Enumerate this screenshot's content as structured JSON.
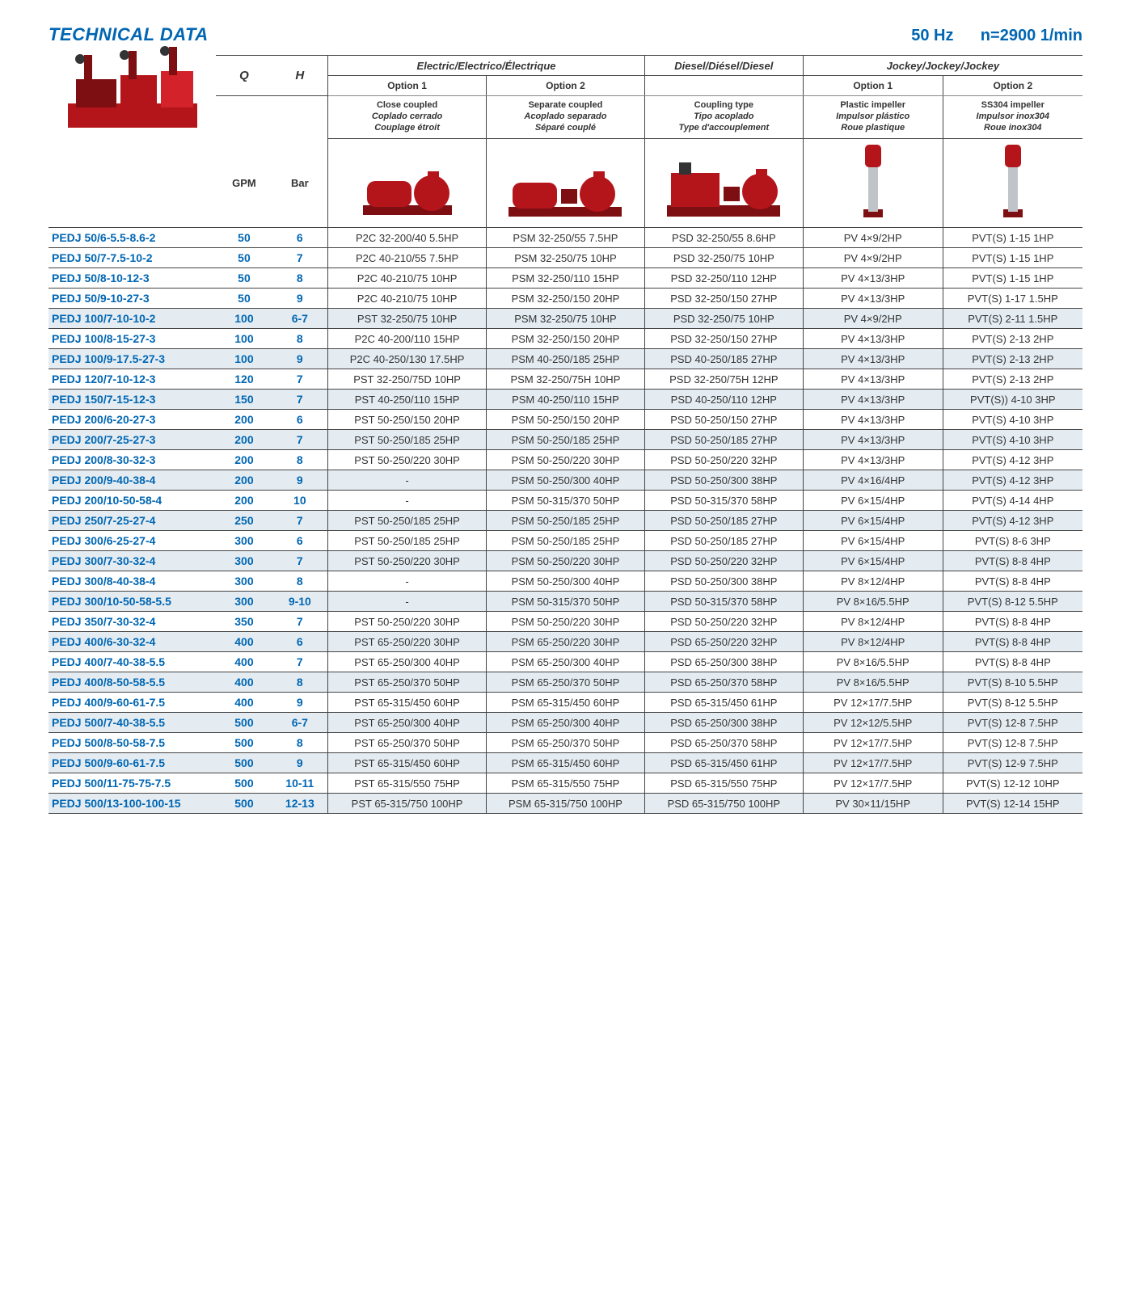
{
  "header": {
    "title_left": "TECHNICAL DATA",
    "title_right": "50 Hz      n=2900 1/min"
  },
  "columns": {
    "q_label": "Q",
    "h_label": "H",
    "q_unit": "GPM",
    "h_unit": "Bar",
    "electric_group": "Electric/Electrico/Électrique",
    "diesel_group": "Diesel/Diésel/Diesel",
    "jockey_group": "Jockey/Jockey/Jockey",
    "option1": "Option 1",
    "option2": "Option 2",
    "elec_opt1_sub": [
      "Close coupled",
      "Coplado cerrado",
      "Couplage étroit"
    ],
    "elec_opt2_sub": [
      "Separate coupled",
      "Acoplado separado",
      "Séparé couplé"
    ],
    "diesel_sub": [
      "Coupling type",
      "Tipo acoplado",
      "Type d'accouplement"
    ],
    "jockey_opt1_sub": [
      "Plastic impeller",
      "Impulsor plástico",
      "Roue plastique"
    ],
    "jockey_opt2_sub": [
      "SS304 impeller",
      "Impulsor inox304",
      "Roue inox304"
    ]
  },
  "colors": {
    "brand_blue": "#0066b3",
    "pump_red": "#b4151b",
    "row_shade": "#e4ecf2",
    "rule": "#444444",
    "bg": "#ffffff"
  },
  "rows": [
    {
      "model": "PEDJ 50/6-5.5-8.6-2",
      "q": "50",
      "h": "6",
      "e1": "P2C 32-200/40 5.5HP",
      "e2": "PSM 32-250/55 7.5HP",
      "d": "PSD 32-250/55 8.6HP",
      "j1": "PV 4×9/2HP",
      "j2": "PVT(S) 1-15 1HP"
    },
    {
      "model": "PEDJ 50/7-7.5-10-2",
      "q": "50",
      "h": "7",
      "e1": "P2C 40-210/55 7.5HP",
      "e2": "PSM 32-250/75 10HP",
      "d": "PSD 32-250/75 10HP",
      "j1": "PV 4×9/2HP",
      "j2": "PVT(S) 1-15 1HP"
    },
    {
      "model": "PEDJ 50/8-10-12-3",
      "q": "50",
      "h": "8",
      "e1": "P2C 40-210/75 10HP",
      "e2": "PSM 32-250/110 15HP",
      "d": "PSD 32-250/110 12HP",
      "j1": "PV 4×13/3HP",
      "j2": "PVT(S) 1-15 1HP"
    },
    {
      "model": "PEDJ 50/9-10-27-3",
      "q": "50",
      "h": "9",
      "e1": "P2C 40-210/75 10HP",
      "e2": "PSM 32-250/150 20HP",
      "d": "PSD 32-250/150 27HP",
      "j1": "PV 4×13/3HP",
      "j2": "PVT(S) 1-17 1.5HP"
    },
    {
      "model": "PEDJ 100/7-10-10-2",
      "q": "100",
      "h": "6-7",
      "e1": "PST 32-250/75 10HP",
      "e2": "PSM 32-250/75 10HP",
      "d": "PSD 32-250/75 10HP",
      "j1": "PV 4×9/2HP",
      "j2": "PVT(S) 2-11 1.5HP",
      "shade": true
    },
    {
      "model": "PEDJ 100/8-15-27-3",
      "q": "100",
      "h": "8",
      "e1": "P2C 40-200/110 15HP",
      "e2": "PSM 32-250/150 20HP",
      "d": "PSD 32-250/150 27HP",
      "j1": "PV 4×13/3HP",
      "j2": "PVT(S) 2-13 2HP"
    },
    {
      "model": "PEDJ 100/9-17.5-27-3",
      "q": "100",
      "h": "9",
      "e1": "P2C 40-250/130 17.5HP",
      "e2": "PSM 40-250/185 25HP",
      "d": "PSD 40-250/185 27HP",
      "j1": "PV 4×13/3HP",
      "j2": "PVT(S) 2-13 2HP",
      "shade": true
    },
    {
      "model": "PEDJ 120/7-10-12-3",
      "q": "120",
      "h": "7",
      "e1": "PST 32-250/75D 10HP",
      "e2": "PSM 32-250/75H 10HP",
      "d": "PSD 32-250/75H 12HP",
      "j1": "PV 4×13/3HP",
      "j2": "PVT(S) 2-13 2HP"
    },
    {
      "model": "PEDJ 150/7-15-12-3",
      "q": "150",
      "h": "7",
      "e1": "PST 40-250/110 15HP",
      "e2": "PSM 40-250/110 15HP",
      "d": "PSD 40-250/110 12HP",
      "j1": "PV 4×13/3HP",
      "j2": "PVT(S)) 4-10 3HP",
      "shade": true
    },
    {
      "model": "PEDJ 200/6-20-27-3",
      "q": "200",
      "h": "6",
      "e1": "PST 50-250/150 20HP",
      "e2": "PSM 50-250/150 20HP",
      "d": "PSD 50-250/150 27HP",
      "j1": "PV 4×13/3HP",
      "j2": "PVT(S) 4-10 3HP"
    },
    {
      "model": "PEDJ 200/7-25-27-3",
      "q": "200",
      "h": "7",
      "e1": "PST 50-250/185 25HP",
      "e2": "PSM 50-250/185 25HP",
      "d": "PSD 50-250/185 27HP",
      "j1": "PV 4×13/3HP",
      "j2": "PVT(S) 4-10 3HP",
      "shade": true
    },
    {
      "model": "PEDJ 200/8-30-32-3",
      "q": "200",
      "h": "8",
      "e1": "PST 50-250/220 30HP",
      "e2": "PSM 50-250/220 30HP",
      "d": "PSD 50-250/220 32HP",
      "j1": "PV 4×13/3HP",
      "j2": "PVT(S) 4-12 3HP"
    },
    {
      "model": "PEDJ 200/9-40-38-4",
      "q": "200",
      "h": "9",
      "e1": "-",
      "e2": "PSM 50-250/300 40HP",
      "d": "PSD 50-250/300 38HP",
      "j1": "PV 4×16/4HP",
      "j2": "PVT(S) 4-12 3HP",
      "shade": true
    },
    {
      "model": "PEDJ 200/10-50-58-4",
      "q": "200",
      "h": "10",
      "e1": "-",
      "e2": "PSM 50-315/370 50HP",
      "d": "PSD 50-315/370 58HP",
      "j1": "PV 6×15/4HP",
      "j2": "PVT(S) 4-14 4HP"
    },
    {
      "model": "PEDJ 250/7-25-27-4",
      "q": "250",
      "h": "7",
      "e1": "PST 50-250/185 25HP",
      "e2": "PSM 50-250/185 25HP",
      "d": "PSD 50-250/185 27HP",
      "j1": "PV 6×15/4HP",
      "j2": "PVT(S) 4-12 3HP",
      "shade": true
    },
    {
      "model": "PEDJ 300/6-25-27-4",
      "q": "300",
      "h": "6",
      "e1": "PST 50-250/185 25HP",
      "e2": "PSM 50-250/185 25HP",
      "d": "PSD 50-250/185 27HP",
      "j1": "PV 6×15/4HP",
      "j2": "PVT(S) 8-6 3HP"
    },
    {
      "model": "PEDJ 300/7-30-32-4",
      "q": "300",
      "h": "7",
      "e1": "PST 50-250/220 30HP",
      "e2": "PSM 50-250/220 30HP",
      "d": "PSD 50-250/220 32HP",
      "j1": "PV 6×15/4HP",
      "j2": "PVT(S) 8-8 4HP",
      "shade": true
    },
    {
      "model": "PEDJ 300/8-40-38-4",
      "q": "300",
      "h": "8",
      "e1": "-",
      "e2": "PSM 50-250/300 40HP",
      "d": "PSD 50-250/300 38HP",
      "j1": "PV 8×12/4HP",
      "j2": "PVT(S) 8-8 4HP"
    },
    {
      "model": "PEDJ 300/10-50-58-5.5",
      "q": "300",
      "h": "9-10",
      "e1": "-",
      "e2": "PSM 50-315/370 50HP",
      "d": "PSD 50-315/370 58HP",
      "j1": "PV 8×16/5.5HP",
      "j2": "PVT(S) 8-12 5.5HP",
      "shade": true
    },
    {
      "model": "PEDJ 350/7-30-32-4",
      "q": "350",
      "h": "7",
      "e1": "PST 50-250/220 30HP",
      "e2": "PSM 50-250/220 30HP",
      "d": "PSD 50-250/220 32HP",
      "j1": "PV 8×12/4HP",
      "j2": "PVT(S) 8-8 4HP"
    },
    {
      "model": "PEDJ 400/6-30-32-4",
      "q": "400",
      "h": "6",
      "e1": "PST 65-250/220 30HP",
      "e2": "PSM 65-250/220 30HP",
      "d": "PSD 65-250/220 32HP",
      "j1": "PV 8×12/4HP",
      "j2": "PVT(S) 8-8 4HP",
      "shade": true
    },
    {
      "model": "PEDJ 400/7-40-38-5.5",
      "q": "400",
      "h": "7",
      "e1": "PST 65-250/300 40HP",
      "e2": "PSM 65-250/300 40HP",
      "d": "PSD 65-250/300 38HP",
      "j1": "PV 8×16/5.5HP",
      "j2": "PVT(S) 8-8 4HP"
    },
    {
      "model": "PEDJ 400/8-50-58-5.5",
      "q": "400",
      "h": "8",
      "e1": "PST 65-250/370 50HP",
      "e2": "PSM 65-250/370 50HP",
      "d": "PSD 65-250/370 58HP",
      "j1": "PV 8×16/5.5HP",
      "j2": "PVT(S) 8-10 5.5HP",
      "shade": true
    },
    {
      "model": "PEDJ 400/9-60-61-7.5",
      "q": "400",
      "h": "9",
      "e1": "PST 65-315/450 60HP",
      "e2": "PSM 65-315/450 60HP",
      "d": "PSD 65-315/450 61HP",
      "j1": "PV 12×17/7.5HP",
      "j2": "PVT(S) 8-12 5.5HP"
    },
    {
      "model": "PEDJ 500/7-40-38-5.5",
      "q": "500",
      "h": "6-7",
      "e1": "PST 65-250/300 40HP",
      "e2": "PSM 65-250/300 40HP",
      "d": "PSD 65-250/300 38HP",
      "j1": "PV 12×12/5.5HP",
      "j2": "PVT(S) 12-8 7.5HP",
      "shade": true
    },
    {
      "model": "PEDJ 500/8-50-58-7.5",
      "q": "500",
      "h": "8",
      "e1": "PST 65-250/370 50HP",
      "e2": "PSM 65-250/370 50HP",
      "d": "PSD 65-250/370 58HP",
      "j1": "PV 12×17/7.5HP",
      "j2": "PVT(S) 12-8 7.5HP"
    },
    {
      "model": "PEDJ 500/9-60-61-7.5",
      "q": "500",
      "h": "9",
      "e1": "PST 65-315/450 60HP",
      "e2": "PSM 65-315/450 60HP",
      "d": "PSD 65-315/450 61HP",
      "j1": "PV 12×17/7.5HP",
      "j2": "PVT(S) 12-9 7.5HP",
      "shade": true
    },
    {
      "model": "PEDJ 500/11-75-75-7.5",
      "q": "500",
      "h": "10-11",
      "e1": "PST 65-315/550 75HP",
      "e2": "PSM 65-315/550 75HP",
      "d": "PSD 65-315/550 75HP",
      "j1": "PV 12×17/7.5HP",
      "j2": "PVT(S) 12-12 10HP"
    },
    {
      "model": "PEDJ 500/13-100-100-15",
      "q": "500",
      "h": "12-13",
      "e1": "PST 65-315/750 100HP",
      "e2": "PSM 65-315/750 100HP",
      "d": "PSD 65-315/750 100HP",
      "j1": "PV 30×11/15HP",
      "j2": "PVT(S) 12-14 15HP",
      "shade": true
    }
  ]
}
